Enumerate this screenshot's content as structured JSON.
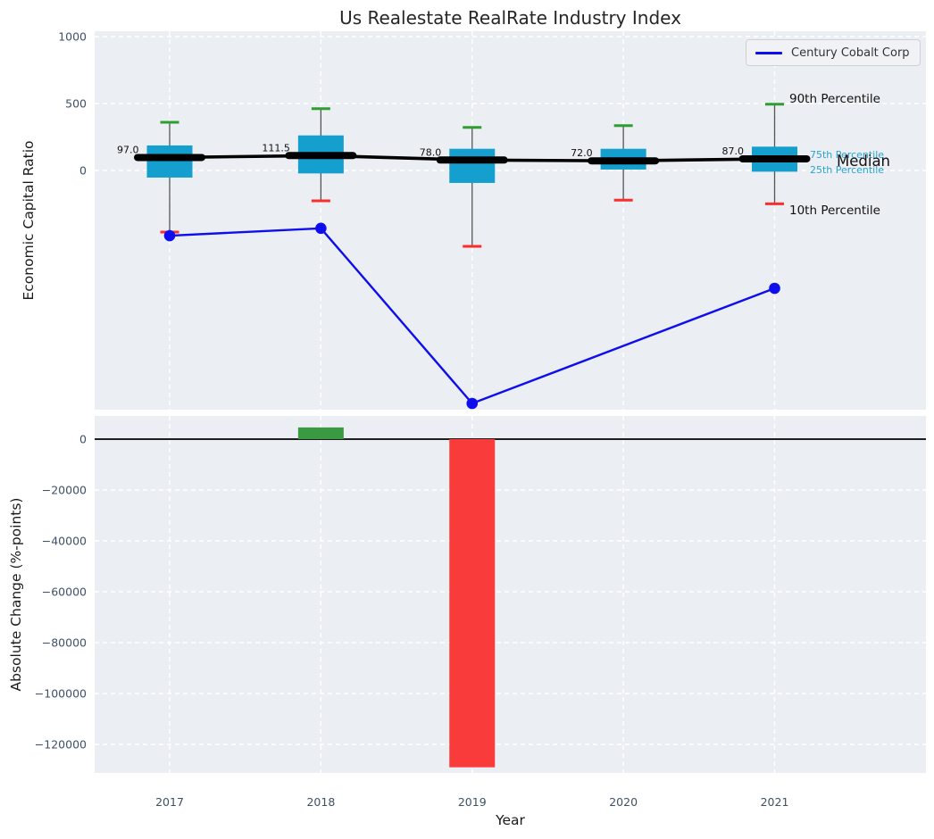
{
  "title": "Us Realestate RealRate Industry Index",
  "legend": {
    "series_label": "Century Cobalt Corp",
    "line_color": "#0d0dee"
  },
  "annotations": {
    "p90": "90th Percentile",
    "p75": "75th Percentile",
    "median": "Median",
    "p25": "25th Percentile",
    "p10": "10th Percentile"
  },
  "colors": {
    "axes_background": "#ebeef2",
    "grid": "#ffffff",
    "box_fill": "#149fce",
    "whisker": "#555555",
    "cap_top": "#2e9e2e",
    "cap_bottom": "#fb2e2e",
    "median_line": "#000000",
    "company_line": "#0d0dee",
    "tick_label": "#3f5066",
    "median_value_label": "#111111",
    "percentile_label": "#29a3cc",
    "positive_bar": "#3a9a41",
    "negative_bar": "#fa3b3b",
    "zero_line": "#000000"
  },
  "chart_data": [
    {
      "type": "boxplot",
      "title": "Us Realestate RealRate Industry Index",
      "ylabel": "Economic Capital Ratio",
      "categories": [
        "2017",
        "2018",
        "2019",
        "2020",
        "2021"
      ],
      "yticks": [
        1000,
        500,
        0
      ],
      "ylim": [
        -1790,
        1040
      ],
      "grid": true,
      "legend_position": "upper right",
      "boxes": [
        {
          "year": "2017",
          "p10": -460,
          "q1": -53,
          "median": 97.0,
          "q3": 187,
          "p90": 360,
          "median_label": "97.0"
        },
        {
          "year": "2018",
          "p10": -227,
          "q1": -22,
          "median": 111.5,
          "q3": 262,
          "p90": 462,
          "median_label": "111.5"
        },
        {
          "year": "2019",
          "p10": -567,
          "q1": -93,
          "median": 78.0,
          "q3": 162,
          "p90": 322,
          "median_label": "78.0"
        },
        {
          "year": "2020",
          "p10": -222,
          "q1": 7,
          "median": 72.0,
          "q3": 162,
          "p90": 335,
          "median_label": "72.0"
        },
        {
          "year": "2021",
          "p10": -249,
          "q1": -9,
          "median": 87.0,
          "q3": 178,
          "p90": 495,
          "median_label": "87.0"
        }
      ],
      "series": [
        {
          "name": "Century Cobalt Corp",
          "points": [
            {
              "x": "2017",
              "y": -487
            },
            {
              "x": "2018",
              "y": -432
            },
            {
              "x": "2019",
              "y": -1740
            },
            {
              "x": "2021",
              "y": -880
            }
          ]
        }
      ]
    },
    {
      "type": "bar",
      "xlabel": "Year",
      "ylabel": "Absolute Change (%-points)",
      "categories": [
        "2017",
        "2018",
        "2019",
        "2020",
        "2021"
      ],
      "values": [
        0,
        4600,
        -129000,
        0,
        0
      ],
      "yticks": [
        0,
        -20000,
        -40000,
        -60000,
        -80000,
        -100000,
        -120000
      ],
      "ylim": [
        -131000,
        9000
      ],
      "grid": true
    }
  ]
}
